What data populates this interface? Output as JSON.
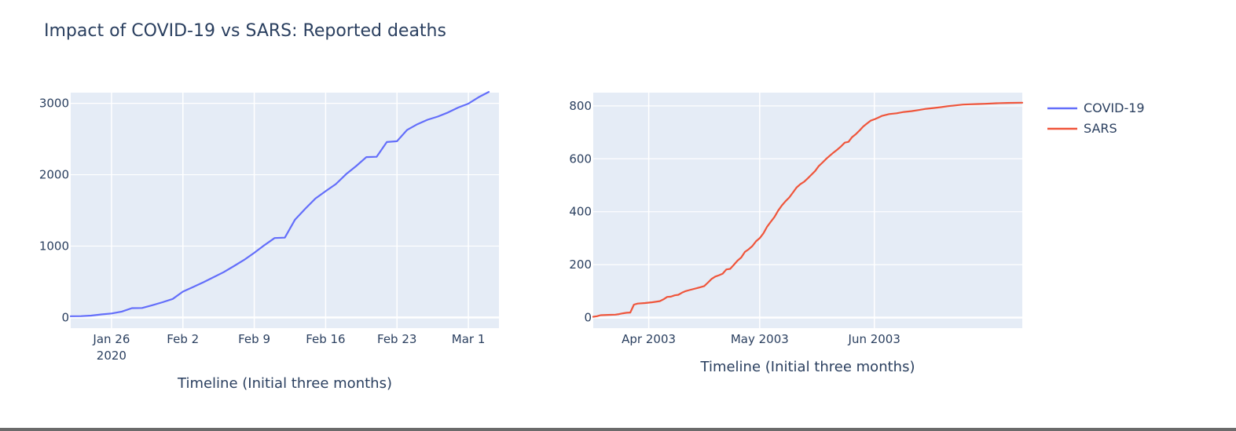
{
  "chart_data": {
    "title": "Impact of COVID-19 vs SARS: Reported deaths",
    "legend": {
      "placement": "top-right",
      "entries": [
        {
          "name": "COVID-19",
          "color": "#636efa"
        },
        {
          "name": "SARS",
          "color": "#ef553b"
        }
      ]
    },
    "background": "#e5ecf6",
    "grid": true,
    "subplots": [
      {
        "type": "line",
        "xlabel": "Timeline (Initial three months)",
        "ylabel": "",
        "xlim": [
          "2020-01-22",
          "2020-03-04"
        ],
        "ylim": [
          -150,
          3150
        ],
        "x_ticks": [
          {
            "date": "2020-01-26",
            "label": "Jan 26",
            "sublabel": "2020"
          },
          {
            "date": "2020-02-02",
            "label": "Feb 2",
            "sublabel": ""
          },
          {
            "date": "2020-02-09",
            "label": "Feb 9",
            "sublabel": ""
          },
          {
            "date": "2020-02-16",
            "label": "Feb 16",
            "sublabel": ""
          },
          {
            "date": "2020-02-23",
            "label": "Feb 23",
            "sublabel": ""
          },
          {
            "date": "2020-03-01",
            "label": "Mar 1",
            "sublabel": ""
          }
        ],
        "y_ticks": [
          {
            "value": 0,
            "label": "0"
          },
          {
            "value": 1000,
            "label": "1000"
          },
          {
            "value": 2000,
            "label": "2000"
          },
          {
            "value": 3000,
            "label": "3000"
          }
        ],
        "series": [
          {
            "name": "COVID-19",
            "color": "#636efa",
            "points": [
              [
                "2020-01-22",
                17
              ],
              [
                "2020-01-23",
                18
              ],
              [
                "2020-01-24",
                26
              ],
              [
                "2020-01-25",
                42
              ],
              [
                "2020-01-26",
                56
              ],
              [
                "2020-01-27",
                82
              ],
              [
                "2020-01-28",
                131
              ],
              [
                "2020-01-29",
                133
              ],
              [
                "2020-01-30",
                171
              ],
              [
                "2020-01-31",
                213
              ],
              [
                "2020-02-01",
                259
              ],
              [
                "2020-02-02",
                362
              ],
              [
                "2020-02-03",
                426
              ],
              [
                "2020-02-04",
                492
              ],
              [
                "2020-02-05",
                564
              ],
              [
                "2020-02-06",
                634
              ],
              [
                "2020-02-07",
                719
              ],
              [
                "2020-02-08",
                806
              ],
              [
                "2020-02-09",
                906
              ],
              [
                "2020-02-10",
                1013
              ],
              [
                "2020-02-11",
                1113
              ],
              [
                "2020-02-12",
                1118
              ],
              [
                "2020-02-13",
                1371
              ],
              [
                "2020-02-14",
                1523
              ],
              [
                "2020-02-15",
                1666
              ],
              [
                "2020-02-16",
                1770
              ],
              [
                "2020-02-17",
                1868
              ],
              [
                "2020-02-18",
                2007
              ],
              [
                "2020-02-19",
                2122
              ],
              [
                "2020-02-20",
                2247
              ],
              [
                "2020-02-21",
                2251
              ],
              [
                "2020-02-22",
                2458
              ],
              [
                "2020-02-23",
                2469
              ],
              [
                "2020-02-24",
                2629
              ],
              [
                "2020-02-25",
                2708
              ],
              [
                "2020-02-26",
                2770
              ],
              [
                "2020-02-27",
                2814
              ],
              [
                "2020-02-28",
                2872
              ],
              [
                "2020-02-29",
                2941
              ],
              [
                "2020-03-01",
                2996
              ],
              [
                "2020-03-02",
                3085
              ],
              [
                "2020-03-03",
                3160
              ]
            ]
          }
        ]
      },
      {
        "type": "line",
        "xlabel": "Timeline (Initial three months)",
        "ylabel": "",
        "xlim": [
          "2003-03-17",
          "2003-07-11"
        ],
        "ylim": [
          -40,
          850
        ],
        "x_ticks": [
          {
            "date": "2003-04-01",
            "label": "Apr 2003",
            "sublabel": ""
          },
          {
            "date": "2003-05-01",
            "label": "May 2003",
            "sublabel": ""
          },
          {
            "date": "2003-06-01",
            "label": "Jun 2003",
            "sublabel": ""
          }
        ],
        "y_ticks": [
          {
            "value": 0,
            "label": "0"
          },
          {
            "value": 200,
            "label": "200"
          },
          {
            "value": 400,
            "label": "400"
          },
          {
            "value": 600,
            "label": "600"
          },
          {
            "value": 800,
            "label": "800"
          }
        ],
        "series": [
          {
            "name": "SARS",
            "color": "#ef553b",
            "points": [
              [
                "2003-03-17",
                3
              ],
              [
                "2003-03-18",
                5
              ],
              [
                "2003-03-19",
                9
              ],
              [
                "2003-03-21",
                10
              ],
              [
                "2003-03-23",
                11
              ],
              [
                "2003-03-24",
                13
              ],
              [
                "2003-03-25",
                16
              ],
              [
                "2003-03-26",
                18
              ],
              [
                "2003-03-27",
                19
              ],
              [
                "2003-03-28",
                49
              ],
              [
                "2003-03-29",
                53
              ],
              [
                "2003-03-31",
                55
              ],
              [
                "2003-04-02",
                58
              ],
              [
                "2003-04-04",
                62
              ],
              [
                "2003-04-05",
                69
              ],
              [
                "2003-04-06",
                78
              ],
              [
                "2003-04-07",
                79
              ],
              [
                "2003-04-08",
                84
              ],
              [
                "2003-04-09",
                86
              ],
              [
                "2003-04-10",
                94
              ],
              [
                "2003-04-11",
                100
              ],
              [
                "2003-04-12",
                104
              ],
              [
                "2003-04-14",
                111
              ],
              [
                "2003-04-16",
                119
              ],
              [
                "2003-04-17",
                132
              ],
              [
                "2003-04-18",
                146
              ],
              [
                "2003-04-19",
                155
              ],
              [
                "2003-04-20",
                160
              ],
              [
                "2003-04-21",
                166
              ],
              [
                "2003-04-22",
                182
              ],
              [
                "2003-04-23",
                184
              ],
              [
                "2003-04-24",
                199
              ],
              [
                "2003-04-25",
                215
              ],
              [
                "2003-04-26",
                227
              ],
              [
                "2003-04-27",
                248
              ],
              [
                "2003-04-28",
                258
              ],
              [
                "2003-04-29",
                270
              ],
              [
                "2003-04-30",
                288
              ],
              [
                "2003-05-01",
                300
              ],
              [
                "2003-05-02",
                318
              ],
              [
                "2003-05-03",
                343
              ],
              [
                "2003-05-04",
                362
              ],
              [
                "2003-05-05",
                380
              ],
              [
                "2003-05-06",
                404
              ],
              [
                "2003-05-07",
                424
              ],
              [
                "2003-05-08",
                440
              ],
              [
                "2003-05-09",
                454
              ],
              [
                "2003-05-10",
                473
              ],
              [
                "2003-05-11",
                492
              ],
              [
                "2003-05-12",
                504
              ],
              [
                "2003-05-13",
                513
              ],
              [
                "2003-05-14",
                526
              ],
              [
                "2003-05-15",
                540
              ],
              [
                "2003-05-16",
                554
              ],
              [
                "2003-05-17",
                573
              ],
              [
                "2003-05-18",
                586
              ],
              [
                "2003-05-19",
                600
              ],
              [
                "2003-05-20",
                612
              ],
              [
                "2003-05-21",
                624
              ],
              [
                "2003-05-22",
                635
              ],
              [
                "2003-05-23",
                647
              ],
              [
                "2003-05-24",
                661
              ],
              [
                "2003-05-25",
                664
              ],
              [
                "2003-05-26",
                682
              ],
              [
                "2003-05-27",
                693
              ],
              [
                "2003-05-28",
                707
              ],
              [
                "2003-05-29",
                722
              ],
              [
                "2003-05-30",
                733
              ],
              [
                "2003-05-31",
                744
              ],
              [
                "2003-06-01",
                749
              ],
              [
                "2003-06-02",
                755
              ],
              [
                "2003-06-03",
                762
              ],
              [
                "2003-06-05",
                769
              ],
              [
                "2003-06-07",
                772
              ],
              [
                "2003-06-09",
                777
              ],
              [
                "2003-06-11",
                780
              ],
              [
                "2003-06-13",
                784
              ],
              [
                "2003-06-15",
                789
              ],
              [
                "2003-06-17",
                792
              ],
              [
                "2003-06-19",
                795
              ],
              [
                "2003-06-21",
                799
              ],
              [
                "2003-06-23",
                802
              ],
              [
                "2003-06-25",
                805
              ],
              [
                "2003-06-27",
                806
              ],
              [
                "2003-06-29",
                807
              ],
              [
                "2003-07-01",
                808
              ],
              [
                "2003-07-04",
                810
              ],
              [
                "2003-07-07",
                811
              ],
              [
                "2003-07-11",
                812
              ]
            ]
          }
        ]
      }
    ]
  }
}
